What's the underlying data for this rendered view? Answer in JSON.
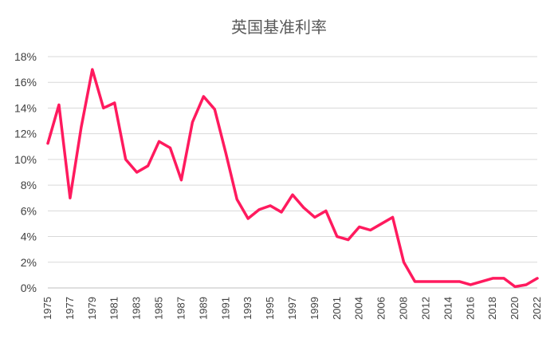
{
  "chart_data": {
    "type": "line",
    "title": "英国基准利率",
    "xlabel": "",
    "ylabel": "",
    "ylim": [
      0,
      18
    ],
    "y_tick_step": 2,
    "y_tick_format": "percent",
    "grid": "horizontal",
    "line_color": "#FF1A5E",
    "x": [
      "1975",
      "1976",
      "1977",
      "1978",
      "1979",
      "1980",
      "1981",
      "1982",
      "1983",
      "1984",
      "1985",
      "1986",
      "1987",
      "1988",
      "1989",
      "1990",
      "1991",
      "1992",
      "1993",
      "1994",
      "1995",
      "1996",
      "1997",
      "1998",
      "1999",
      "2000",
      "2001",
      "2002",
      "2004",
      "2005",
      "2006",
      "2007",
      "2008",
      "2009",
      "2012",
      "2013",
      "2014",
      "2015",
      "2016",
      "2017",
      "2018",
      "2019",
      "2020",
      "2021",
      "2022"
    ],
    "x_tick_labels": [
      "1975",
      "1977",
      "1979",
      "1981",
      "1983",
      "1985",
      "1987",
      "1989",
      "1991",
      "1993",
      "1995",
      "1997",
      "1999",
      "2001",
      "2004",
      "2006",
      "2008",
      "2012",
      "2014",
      "2016",
      "2018",
      "2020",
      "2022"
    ],
    "series": [
      {
        "name": "",
        "values": [
          11.25,
          14.25,
          7.0,
          12.5,
          17.0,
          14.0,
          14.4,
          10.0,
          9.0,
          9.5,
          11.4,
          10.9,
          8.4,
          12.9,
          14.9,
          13.9,
          10.5,
          6.9,
          5.4,
          6.1,
          6.4,
          5.9,
          7.25,
          6.25,
          5.5,
          6.0,
          4.0,
          3.75,
          4.75,
          4.5,
          5.0,
          5.5,
          2.0,
          0.5,
          0.5,
          0.5,
          0.5,
          0.5,
          0.25,
          0.5,
          0.75,
          0.75,
          0.1,
          0.25,
          0.75
        ]
      }
    ]
  }
}
